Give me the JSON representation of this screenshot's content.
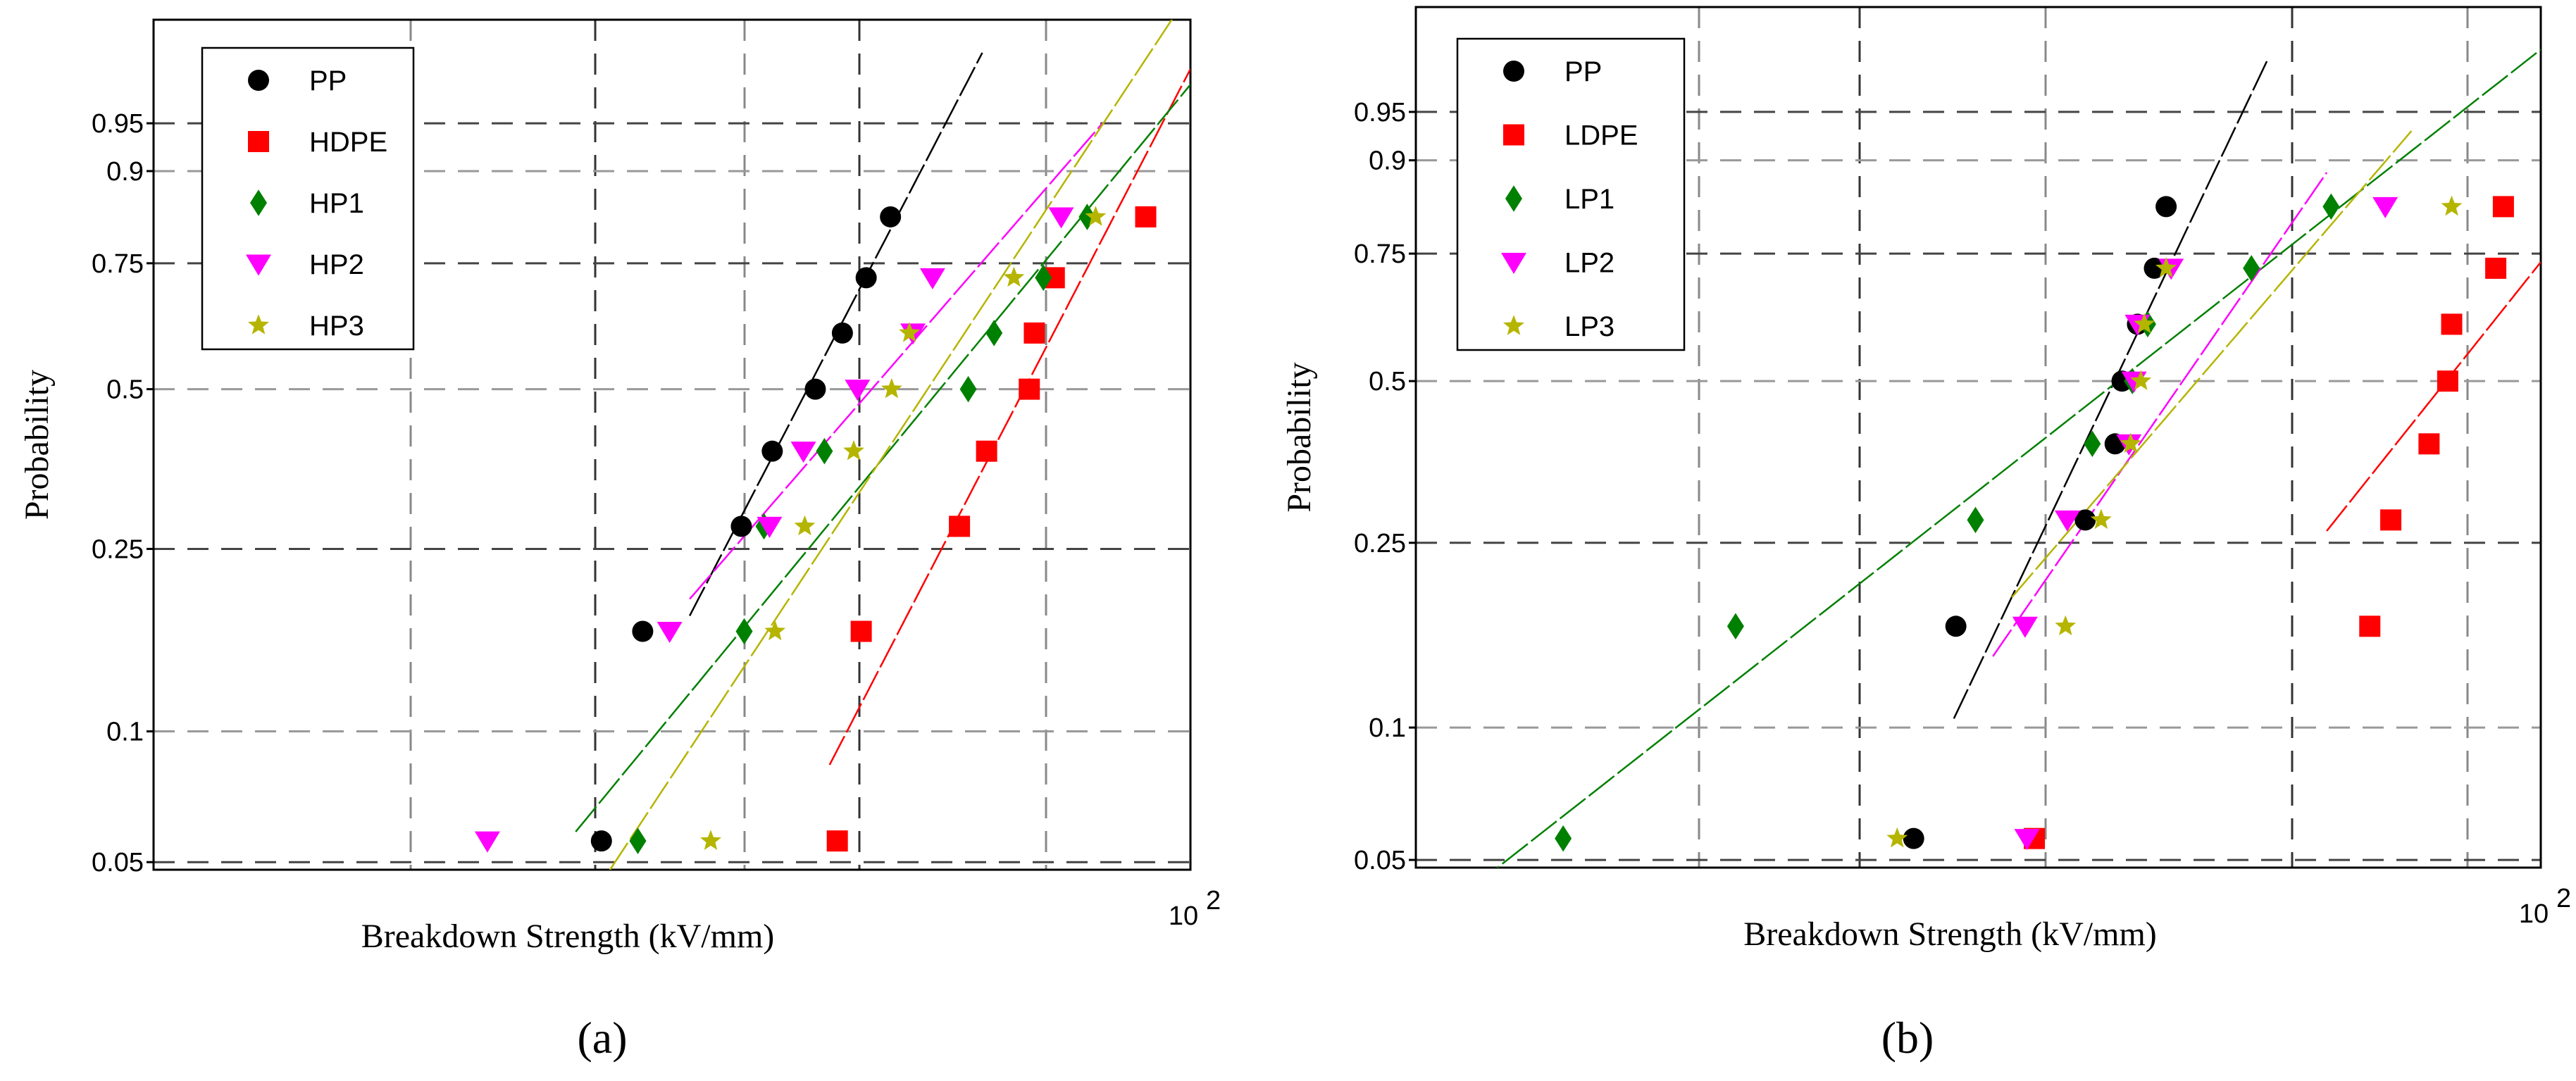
{
  "figure": {
    "panel_a_label": "(a)",
    "panel_b_label": "(b)"
  },
  "chart_data": [
    {
      "type": "scatter",
      "panel": "a",
      "title": "",
      "xlabel": "Breakdown Strength (kV/mm)",
      "ylabel": "Probability",
      "xscale": "log",
      "yscale": "weibull",
      "xlim": [
        29,
        100
      ],
      "ylim": [
        0.048,
        0.995
      ],
      "x_ticks": [
        100
      ],
      "x_tick_labels": [
        "10",
        "2"
      ],
      "y_ticks": [
        0.05,
        0.1,
        0.25,
        0.5,
        0.75,
        0.9,
        0.95
      ],
      "y_tick_labels": [
        "0.05",
        "0.1",
        "0.25",
        "0.5",
        "0.75",
        "0.9",
        "0.95"
      ],
      "grid": true,
      "legend_position": "top-left",
      "series": [
        {
          "name": "PP",
          "marker": "circle",
          "color": "#000000",
          "x": [
            49.5,
            52.0,
            58.5,
            60.7,
            63.9,
            66.0,
            67.9,
            69.9
          ],
          "y": [
            0.056,
            0.167,
            0.278,
            0.389,
            0.5,
            0.611,
            0.722,
            0.833
          ],
          "fit_x": [
            55,
            78
          ]
        },
        {
          "name": "HDPE",
          "marker": "square",
          "color": "#ff0000",
          "x": [
            65.6,
            67.5,
            75.9,
            78.4,
            82.5,
            83.0,
            85.0,
            94.8
          ],
          "y": [
            0.056,
            0.167,
            0.278,
            0.389,
            0.5,
            0.611,
            0.722,
            0.833
          ],
          "fit_x": [
            65,
            100
          ]
        },
        {
          "name": "HP1",
          "marker": "diamond",
          "color": "#008000",
          "x": [
            51.7,
            58.7,
            60.1,
            64.6,
            76.7,
            79.1,
            83.9,
            88.4
          ],
          "y": [
            0.056,
            0.167,
            0.278,
            0.389,
            0.5,
            0.611,
            0.722,
            0.833
          ],
          "fit_x": [
            48,
            100
          ]
        },
        {
          "name": "HP2",
          "marker": "triangle-down",
          "color": "#ff00ff",
          "x": [
            43.2,
            53.7,
            60.5,
            63.0,
            67.2,
            71.8,
            73.5,
            85.7
          ],
          "y": [
            0.056,
            0.167,
            0.278,
            0.389,
            0.5,
            0.611,
            0.722,
            0.833
          ],
          "fit_x": [
            55,
            90
          ]
        },
        {
          "name": "HP3",
          "marker": "star",
          "color": "#b5b500",
          "x": [
            56.4,
            60.9,
            63.1,
            66.9,
            70.0,
            71.5,
            81.0,
            89.3
          ],
          "y": [
            0.056,
            0.167,
            0.278,
            0.389,
            0.5,
            0.611,
            0.722,
            0.833
          ],
          "fit_x": [
            50,
            100
          ]
        }
      ]
    },
    {
      "type": "scatter",
      "panel": "b",
      "title": "",
      "xlabel": "Breakdown Strength (kV/mm)",
      "ylabel": "Probability",
      "xscale": "log",
      "yscale": "weibull",
      "xlim": [
        40,
        100
      ],
      "ylim": [
        0.048,
        0.995
      ],
      "x_ticks": [
        100
      ],
      "x_tick_labels": [
        "10",
        "2"
      ],
      "y_ticks": [
        0.05,
        0.1,
        0.25,
        0.5,
        0.75,
        0.9,
        0.95
      ],
      "y_tick_labels": [
        "0.05",
        "0.1",
        "0.25",
        "0.5",
        "0.75",
        "0.9",
        "0.95"
      ],
      "grid": true,
      "legend_position": "top-left",
      "series": [
        {
          "name": "PP",
          "marker": "circle",
          "color": "#000000",
          "x": [
            60.0,
            62.1,
            69.0,
            70.7,
            71.1,
            72.0,
            73.0,
            73.7
          ],
          "y": [
            0.056,
            0.167,
            0.278,
            0.389,
            0.5,
            0.611,
            0.722,
            0.833
          ],
          "fit_x": [
            62,
            80
          ]
        },
        {
          "name": "LDPE",
          "marker": "square",
          "color": "#ff0000",
          "x": [
            66.2,
            87.0,
            88.5,
            91.3,
            92.7,
            93.0,
            96.4,
            97.0
          ],
          "y": [
            0.056,
            0.167,
            0.278,
            0.389,
            0.5,
            0.611,
            0.722,
            0.833
          ],
          "fit_x": [
            84,
            100
          ]
        },
        {
          "name": "LP1",
          "marker": "diamond",
          "color": "#008000",
          "x": [
            45.1,
            51.9,
            63.1,
            69.4,
            71.7,
            72.6,
            79.0,
            84.3
          ],
          "y": [
            0.056,
            0.167,
            0.278,
            0.389,
            0.5,
            0.611,
            0.722,
            0.833
          ],
          "fit_x": [
            40,
            100
          ]
        },
        {
          "name": "LP2",
          "marker": "triangle-down",
          "color": "#ff00ff",
          "x": [
            65.8,
            65.7,
            68.0,
            71.5,
            71.8,
            72.0,
            74.0,
            88.1
          ],
          "y": [
            0.056,
            0.167,
            0.278,
            0.389,
            0.5,
            0.611,
            0.722,
            0.833
          ],
          "fit_x": [
            64,
            84
          ]
        },
        {
          "name": "LP3",
          "marker": "star",
          "color": "#b5b500",
          "x": [
            59.2,
            67.9,
            69.9,
            71.6,
            72.2,
            72.4,
            73.7,
            93.0
          ],
          "y": [
            0.056,
            0.167,
            0.278,
            0.389,
            0.5,
            0.611,
            0.722,
            0.833
          ],
          "fit_x": [
            65,
            90
          ]
        }
      ]
    }
  ]
}
